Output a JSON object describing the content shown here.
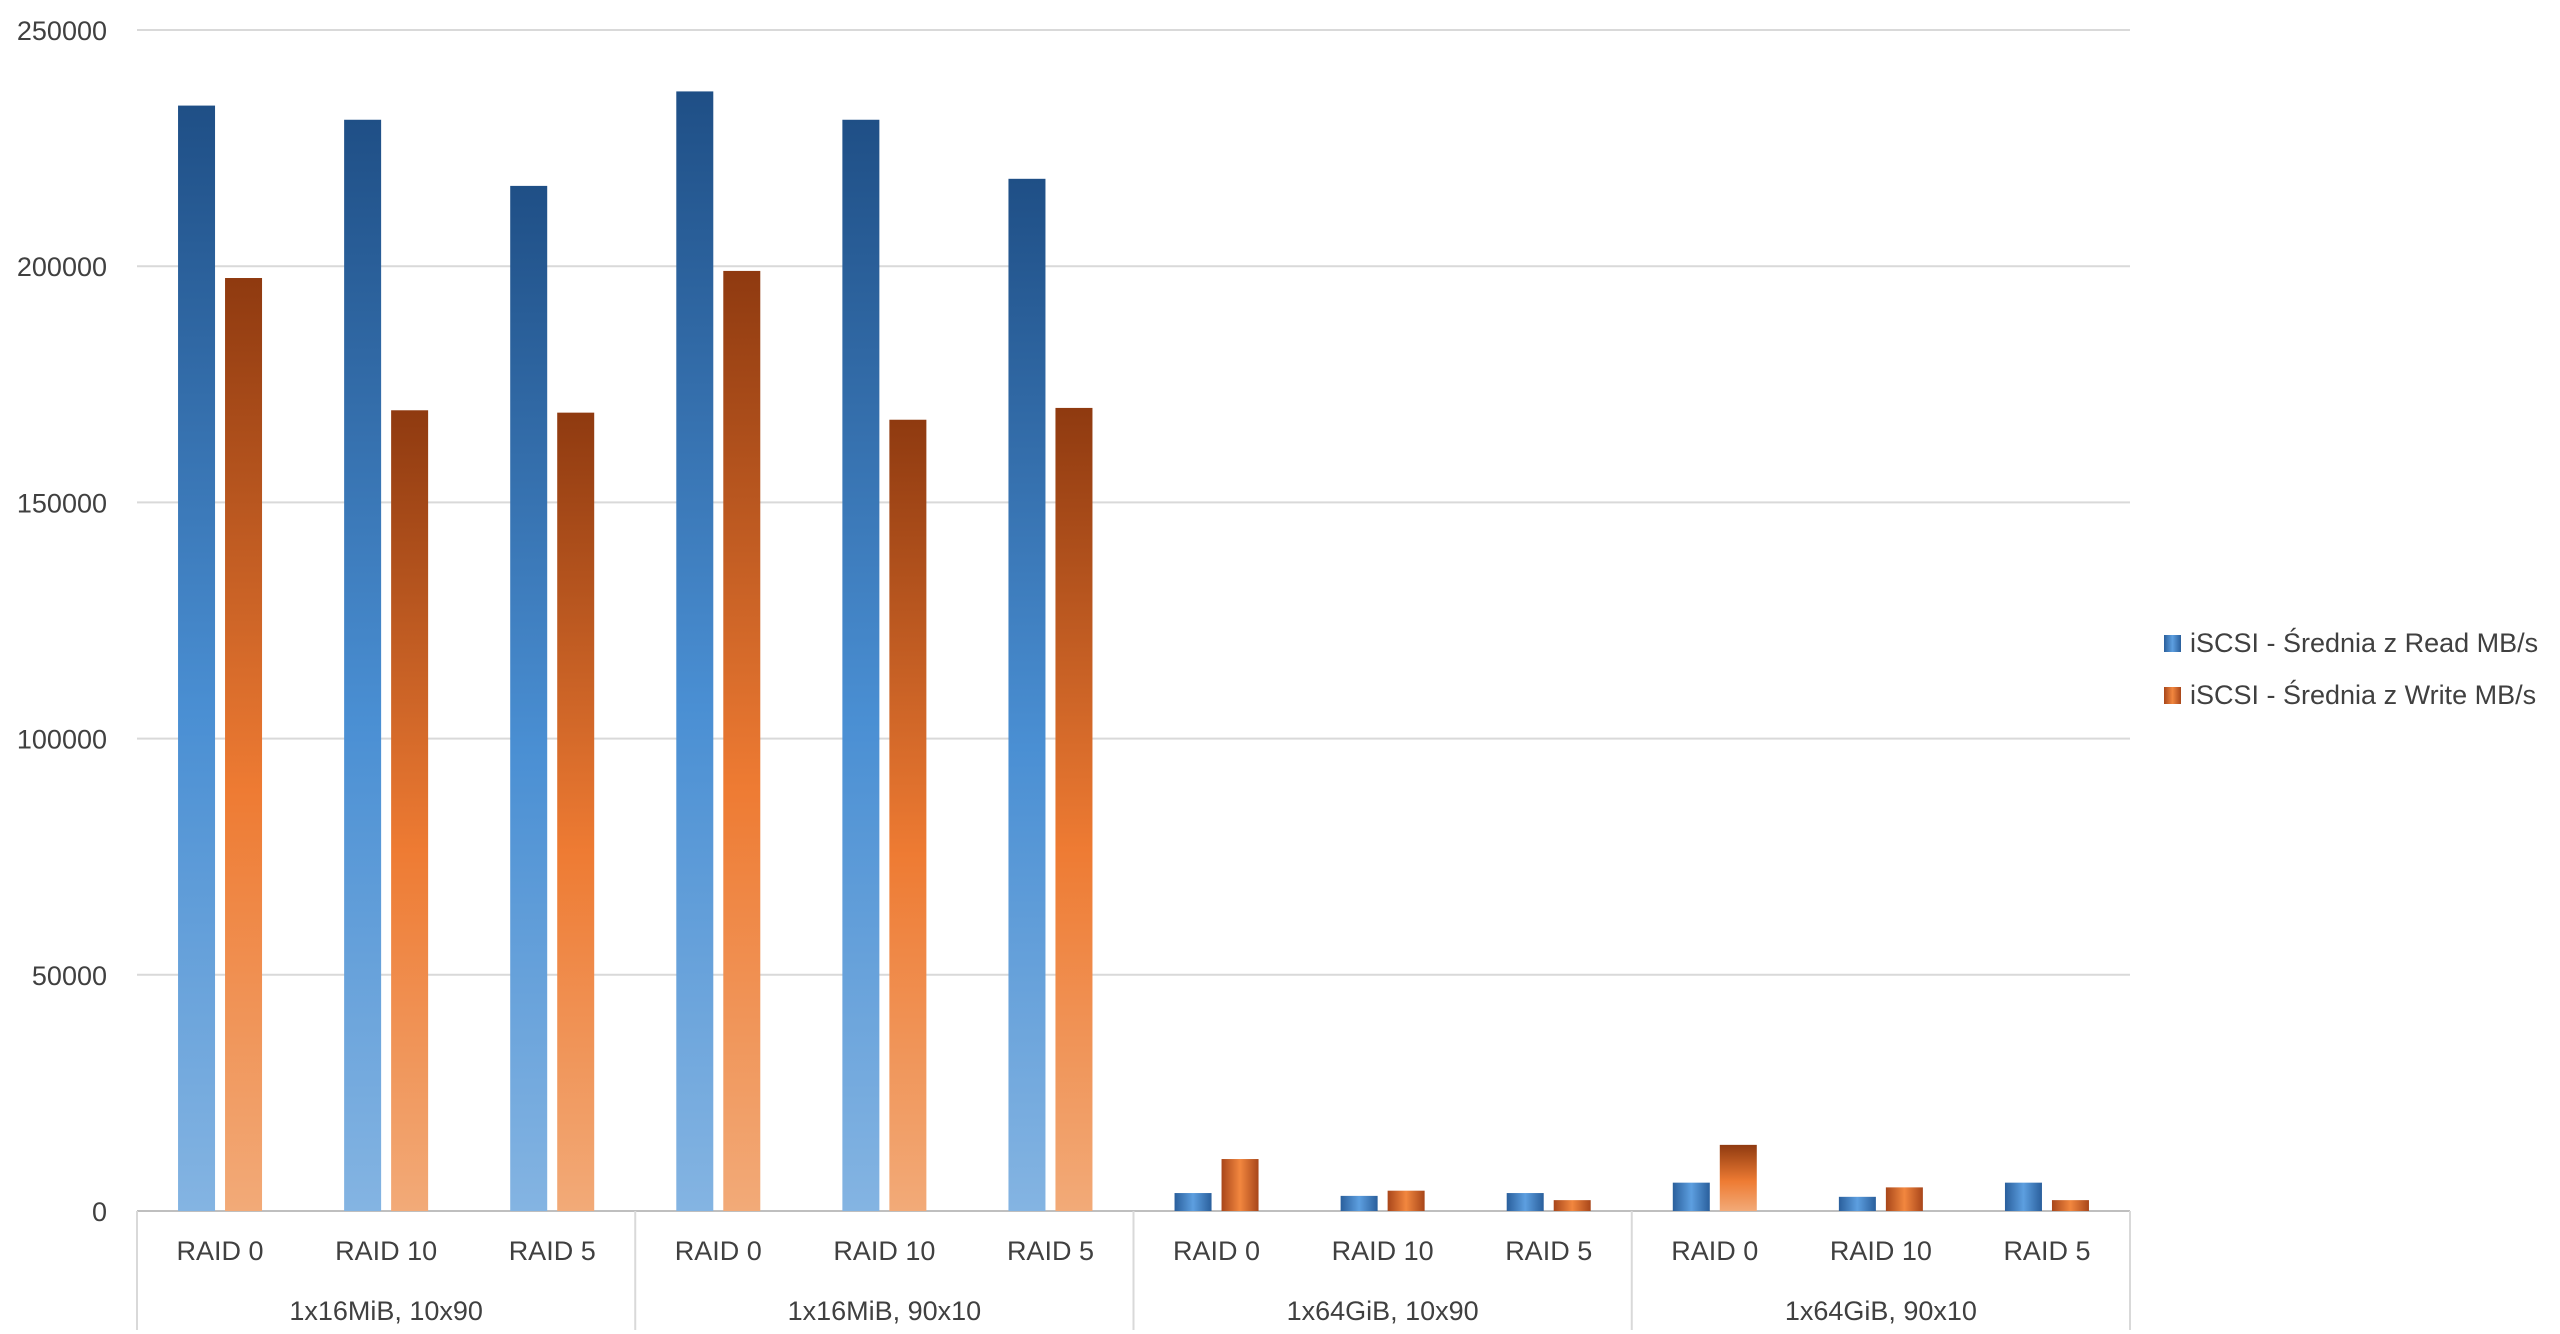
{
  "chart_data": {
    "type": "bar",
    "groups": [
      {
        "label": "1x16MiB, 10x90",
        "categories": [
          "RAID 0",
          "RAID 10",
          "RAID 5"
        ]
      },
      {
        "label": "1x16MiB, 90x10",
        "categories": [
          "RAID 0",
          "RAID 10",
          "RAID 5"
        ]
      },
      {
        "label": "1x64GiB, 10x90",
        "categories": [
          "RAID 0",
          "RAID 10",
          "RAID 5"
        ]
      },
      {
        "label": "1x64GiB, 90x10",
        "categories": [
          "RAID 0",
          "RAID 10",
          "RAID 5"
        ]
      }
    ],
    "series": [
      {
        "name": "iSCSI - Średnia z Read MB/s",
        "color": "#2F6BAA",
        "values": [
          234000,
          231000,
          217000,
          237000,
          231000,
          218500,
          3800,
          3200,
          3800,
          6000,
          3000,
          6000
        ]
      },
      {
        "name": "iSCSI - Średnia z Write MB/s",
        "color": "#C0561E",
        "values": [
          197500,
          169500,
          169000,
          199000,
          167500,
          170000,
          11000,
          4300,
          2300,
          14000,
          5000,
          2300
        ]
      }
    ],
    "ylim": [
      0,
      250000
    ],
    "yticks": [
      0,
      50000,
      100000,
      150000,
      200000,
      250000
    ],
    "grid": true,
    "legend": "right"
  }
}
